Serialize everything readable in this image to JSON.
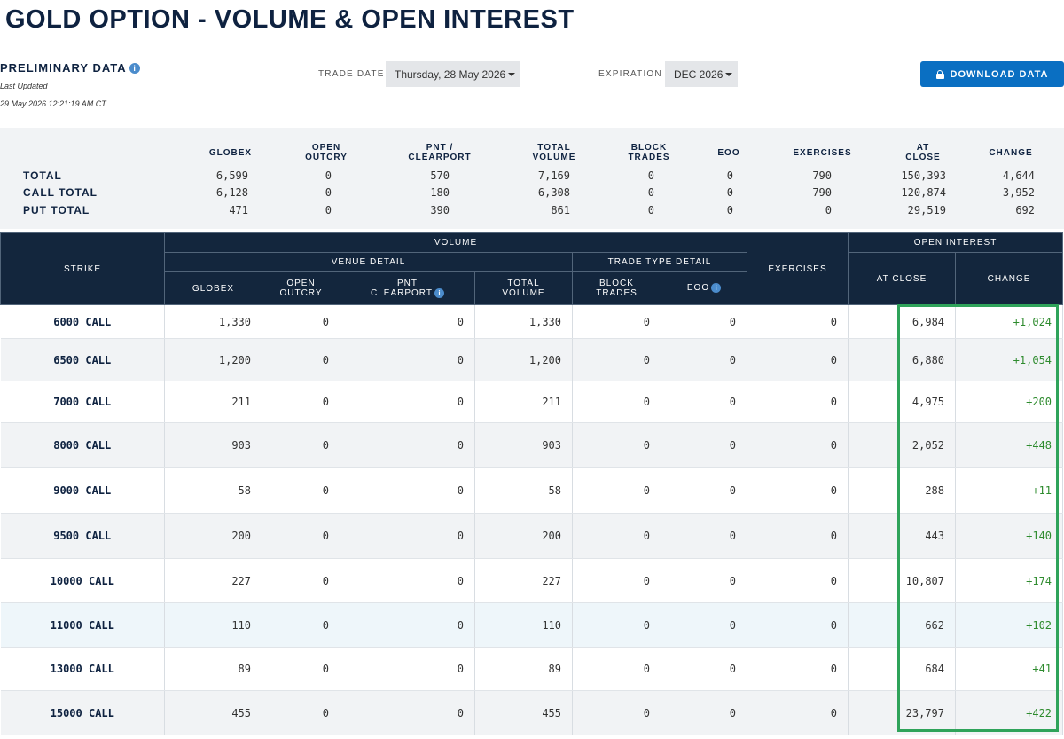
{
  "page": {
    "title": "GOLD OPTION - VOLUME & OPEN INTEREST",
    "preliminary": "PRELIMINARY DATA",
    "info_glyph": "i",
    "last_updated_label": "Last Updated",
    "last_updated_value": "29 May 2026 12:21:19 AM CT"
  },
  "controls": {
    "trade_date_label": "TRADE DATE",
    "trade_date_value": "Thursday, 28 May 2026",
    "expiration_label": "EXPIRATION",
    "expiration_value": "DEC 2026",
    "download_label": "DOWNLOAD DATA"
  },
  "summary": {
    "headers": {
      "globex": "GLOBEX",
      "open_outcry_1": "OPEN",
      "open_outcry_2": "OUTCRY",
      "pnt_1": "PNT /",
      "pnt_2": "CLEARPORT",
      "total_volume_1": "TOTAL",
      "total_volume_2": "VOLUME",
      "block_1": "BLOCK",
      "block_2": "TRADES",
      "eoo": "EOO",
      "exercises": "EXERCISES",
      "at_close_1": "AT",
      "at_close_2": "CLOSE",
      "change": "CHANGE"
    },
    "rows": [
      {
        "label": "TOTAL",
        "globex": "6,599",
        "open_outcry": "0",
        "pnt": "570",
        "total_volume": "7,169",
        "block": "0",
        "eoo": "0",
        "exercises": "790",
        "at_close": "150,393",
        "change": "4,644"
      },
      {
        "label": "CALL TOTAL",
        "globex": "6,128",
        "open_outcry": "0",
        "pnt": "180",
        "total_volume": "6,308",
        "block": "0",
        "eoo": "0",
        "exercises": "790",
        "at_close": "120,874",
        "change": "3,952"
      },
      {
        "label": "PUT TOTAL",
        "globex": "471",
        "open_outcry": "0",
        "pnt": "390",
        "total_volume": "861",
        "block": "0",
        "eoo": "0",
        "exercises": "0",
        "at_close": "29,519",
        "change": "692"
      }
    ]
  },
  "table": {
    "headers": {
      "strike": "STRIKE",
      "volume": "VOLUME",
      "venue_detail": "VENUE DETAIL",
      "trade_type_detail": "TRADE TYPE DETAIL",
      "exercises": "EXERCISES",
      "open_interest": "OPEN INTEREST",
      "globex": "GLOBEX",
      "open_outcry_1": "OPEN",
      "open_outcry_2": "OUTCRY",
      "pnt_1": "PNT",
      "pnt_2": "CLEARPORT",
      "total_volume_1": "TOTAL",
      "total_volume_2": "VOLUME",
      "block_1": "BLOCK",
      "block_2": "TRADES",
      "eoo": "EOO",
      "at_close": "AT CLOSE",
      "change": "CHANGE"
    },
    "rows": [
      {
        "strike": "6000 CALL",
        "globex": "1,330",
        "open_outcry": "0",
        "pnt": "0",
        "total_volume": "1,330",
        "block": "0",
        "eoo": "0",
        "exercises": "0",
        "at_close": "6,984",
        "change": "+1,024"
      },
      {
        "strike": "6500 CALL",
        "globex": "1,200",
        "open_outcry": "0",
        "pnt": "0",
        "total_volume": "1,200",
        "block": "0",
        "eoo": "0",
        "exercises": "0",
        "at_close": "6,880",
        "change": "+1,054"
      },
      {
        "strike": "7000 CALL",
        "globex": "211",
        "open_outcry": "0",
        "pnt": "0",
        "total_volume": "211",
        "block": "0",
        "eoo": "0",
        "exercises": "0",
        "at_close": "4,975",
        "change": "+200"
      },
      {
        "strike": "8000 CALL",
        "globex": "903",
        "open_outcry": "0",
        "pnt": "0",
        "total_volume": "903",
        "block": "0",
        "eoo": "0",
        "exercises": "0",
        "at_close": "2,052",
        "change": "+448"
      },
      {
        "strike": "9000 CALL",
        "globex": "58",
        "open_outcry": "0",
        "pnt": "0",
        "total_volume": "58",
        "block": "0",
        "eoo": "0",
        "exercises": "0",
        "at_close": "288",
        "change": "+11"
      },
      {
        "strike": "9500 CALL",
        "globex": "200",
        "open_outcry": "0",
        "pnt": "0",
        "total_volume": "200",
        "block": "0",
        "eoo": "0",
        "exercises": "0",
        "at_close": "443",
        "change": "+140"
      },
      {
        "strike": "10000 CALL",
        "globex": "227",
        "open_outcry": "0",
        "pnt": "0",
        "total_volume": "227",
        "block": "0",
        "eoo": "0",
        "exercises": "0",
        "at_close": "10,807",
        "change": "+174"
      },
      {
        "strike": "11000 CALL",
        "globex": "110",
        "open_outcry": "0",
        "pnt": "0",
        "total_volume": "110",
        "block": "0",
        "eoo": "0",
        "exercises": "0",
        "at_close": "662",
        "change": "+102"
      },
      {
        "strike": "13000 CALL",
        "globex": "89",
        "open_outcry": "0",
        "pnt": "0",
        "total_volume": "89",
        "block": "0",
        "eoo": "0",
        "exercises": "0",
        "at_close": "684",
        "change": "+41"
      },
      {
        "strike": "15000 CALL",
        "globex": "455",
        "open_outcry": "0",
        "pnt": "0",
        "total_volume": "455",
        "block": "0",
        "eoo": "0",
        "exercises": "0",
        "at_close": "23,797",
        "change": "+422"
      }
    ]
  },
  "colors": {
    "navy": "#13263d",
    "title": "#0e2240",
    "accent_blue": "#0a6fc2",
    "positive_green": "#2e8b2e",
    "highlight_border": "#2fa35a"
  }
}
